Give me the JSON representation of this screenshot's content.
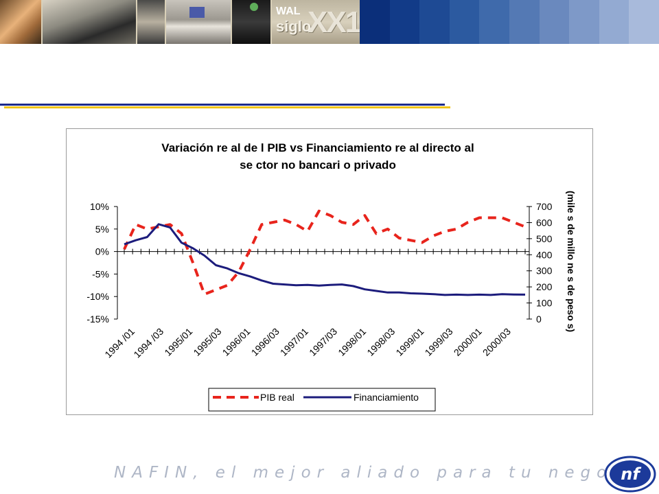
{
  "banner": {
    "photo_1_label": "WAL",
    "photo_2_label": "siglo",
    "photo_3_label": "XX1",
    "stripe_colors": [
      "#0b2f7a",
      "#123b88",
      "#1e4a94",
      "#2c5aa0",
      "#3f6aab",
      "#5479b4",
      "#6a89be",
      "#7e99c8",
      "#93aad2",
      "#a8badb"
    ]
  },
  "footer": {
    "slogan": "NAFIN, el mejor aliado para tu negocio",
    "logo_text": "nf"
  },
  "chart_data": {
    "type": "line",
    "title_line1": "Variación re al de l PIB vs Financiamiento re al directo al",
    "title_line2": "se ctor no bancari o privado",
    "y_ticks": [
      "10%",
      "5%",
      "0%",
      "-5%",
      "-10%",
      "-15%"
    ],
    "y_right_ticks": [
      "700",
      "600",
      "500",
      "400",
      "300",
      "200",
      "100",
      "0"
    ],
    "y_right_label": "(mile s de millo ne s de peso s)",
    "ylim": [
      -15,
      10
    ],
    "ylim_right": [
      0,
      700
    ],
    "x_tick_labels": [
      "1994 /01",
      "1994 /03",
      "1995/01",
      "1995/03",
      "1996/01",
      "1996/03",
      "1997/01",
      "1997/03",
      "1998/01",
      "1998/03",
      "1999/01",
      "1999/03",
      "2000/01",
      "2000/03"
    ],
    "series": [
      {
        "name": "PIB real",
        "axis": "left",
        "color": "#e8241c",
        "dash": true,
        "values": [
          0.5,
          6.0,
          5.0,
          5.5,
          6.0,
          4.0,
          -2.5,
          -9.5,
          -8.5,
          -7.5,
          -4.5,
          0.5,
          6.0,
          6.5,
          7.0,
          6.0,
          4.5,
          9.0,
          8.0,
          6.5,
          6.0,
          8.0,
          4.0,
          5.0,
          3.0,
          2.5,
          2.0,
          3.5,
          4.5,
          5.0,
          6.5,
          7.5,
          7.5,
          7.5,
          6.5,
          5.5
        ]
      },
      {
        "name": "Financiamiento",
        "axis": "right",
        "color": "#1c1c7c",
        "dash": false,
        "values": [
          465,
          490,
          510,
          590,
          570,
          475,
          440,
          395,
          335,
          315,
          285,
          265,
          240,
          220,
          215,
          210,
          212,
          208,
          212,
          215,
          205,
          185,
          175,
          165,
          165,
          160,
          158,
          155,
          150,
          152,
          150,
          152,
          150,
          155,
          153,
          152
        ]
      }
    ],
    "legend": {
      "position": "bottom-center",
      "labels": [
        "PIB real",
        "Financiamiento"
      ]
    },
    "grid": false
  }
}
